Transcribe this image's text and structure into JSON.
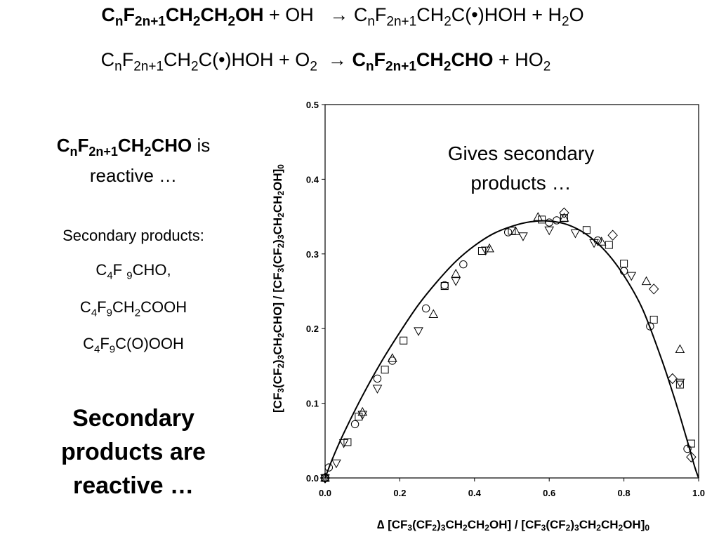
{
  "equations": {
    "eq1": {
      "reactant_bold": [
        "C",
        "n",
        "F",
        "2n+1",
        "CH",
        "2",
        "CH",
        "2",
        "OH"
      ],
      "plus_oh": " + OH",
      "arrow": "→",
      "product": [
        "C",
        "n",
        "F",
        "2n+1",
        "CH",
        "2",
        "C(•)HOH + H",
        "2",
        "O"
      ]
    },
    "eq2": {
      "reactant": [
        "C",
        "n",
        "F",
        "2n+1",
        "CH",
        "2",
        "C(•)HOH + O",
        "2"
      ],
      "arrow": "→",
      "product_bold": [
        "C",
        "n",
        "F",
        "2n+1",
        "CH",
        "2",
        "CHO"
      ],
      "plus_ho2": [
        "+ HO",
        "2"
      ]
    }
  },
  "left_panel": {
    "reactive_title": {
      "formula": [
        "C",
        "n",
        "F",
        "2n+1",
        "CH",
        "2",
        "CHO"
      ],
      "suffix": " is",
      "line2": "reactive …"
    },
    "secondary_heading": "Secondary products:",
    "secondary_items": [
      [
        "C",
        "4",
        "F ",
        "9",
        "CHO,"
      ],
      [
        "C",
        "4",
        "F",
        "9",
        "CH",
        "2",
        "COOH"
      ],
      [
        "C",
        "4",
        "F",
        "9",
        "C(O)OOH"
      ]
    ],
    "conclusion": [
      "Secondary",
      "products are",
      "reactive …"
    ]
  },
  "chart_data": {
    "type": "scatter",
    "annotation": [
      "Gives secondary",
      "products …"
    ],
    "xlabel_parts": [
      "∆ [CF",
      "3",
      "(CF",
      "2",
      ")",
      "3",
      "CH",
      "2",
      "CH",
      "2",
      "OH] / [CF",
      "3",
      "(CF",
      "2",
      ")",
      "3",
      "CH",
      "2",
      "CH",
      "2",
      "OH]",
      "0"
    ],
    "ylabel_parts": [
      "[CF",
      "3",
      "(CF",
      "2",
      ")",
      "3",
      "CH",
      "2",
      "CHO] / [CF",
      "3",
      "(CF",
      "2",
      ")",
      "3",
      "CH",
      "2",
      "CH",
      "2",
      "OH]",
      "0"
    ],
    "xlim": [
      0,
      1.0
    ],
    "ylim": [
      0,
      0.5
    ],
    "x_ticks": [
      0,
      0.2,
      0.4,
      0.6,
      0.8,
      1.0
    ],
    "x_tick_labels": [
      "0.0",
      "0.2",
      "0.4",
      "0.6",
      "0.8",
      "1.0"
    ],
    "y_ticks": [
      0,
      0.1,
      0.2,
      0.3,
      0.4,
      0.5
    ],
    "y_tick_labels": [
      "0.0",
      "0.1",
      "0.2",
      "0.3",
      "0.4",
      "0.5"
    ],
    "grid": false,
    "legend": "none",
    "fit_curve": {
      "x": [
        0,
        0.02,
        0.05,
        0.1,
        0.15,
        0.2,
        0.25,
        0.3,
        0.35,
        0.4,
        0.45,
        0.5,
        0.55,
        0.6,
        0.65,
        0.7,
        0.75,
        0.8,
        0.85,
        0.9,
        0.93,
        0.95,
        0.97,
        0.99,
        1.0
      ],
      "y": [
        0,
        0.026,
        0.06,
        0.11,
        0.155,
        0.195,
        0.232,
        0.263,
        0.29,
        0.311,
        0.327,
        0.337,
        0.343,
        0.344,
        0.339,
        0.326,
        0.304,
        0.271,
        0.226,
        0.16,
        0.115,
        0.083,
        0.049,
        0.014,
        0
      ]
    },
    "series": [
      {
        "marker": "circle",
        "x": [
          0,
          0.01,
          0.08,
          0.14,
          0.18,
          0.27,
          0.32,
          0.37,
          0.49,
          0.6,
          0.62,
          0.73,
          0.8,
          0.87,
          0.97
        ],
        "y": [
          0,
          0.014,
          0.072,
          0.133,
          0.157,
          0.227,
          0.258,
          0.286,
          0.329,
          0.342,
          0.345,
          0.318,
          0.277,
          0.203,
          0.039
        ]
      },
      {
        "marker": "square",
        "x": [
          0,
          0.06,
          0.09,
          0.16,
          0.21,
          0.32,
          0.42,
          0.5,
          0.58,
          0.64,
          0.7,
          0.76,
          0.8,
          0.88,
          0.95,
          0.98
        ],
        "y": [
          0,
          0.048,
          0.082,
          0.145,
          0.184,
          0.257,
          0.304,
          0.331,
          0.346,
          0.348,
          0.332,
          0.312,
          0.287,
          0.212,
          0.125,
          0.046
        ]
      },
      {
        "marker": "triangle-up",
        "x": [
          0,
          0.1,
          0.18,
          0.29,
          0.35,
          0.44,
          0.51,
          0.57,
          0.64,
          0.74,
          0.86,
          0.95
        ],
        "y": [
          0,
          0.088,
          0.16,
          0.219,
          0.273,
          0.307,
          0.33,
          0.349,
          0.348,
          0.316,
          0.263,
          0.172
        ]
      },
      {
        "marker": "triangle-down",
        "x": [
          0,
          0.03,
          0.05,
          0.1,
          0.14,
          0.25,
          0.35,
          0.43,
          0.53,
          0.6,
          0.67,
          0.72,
          0.82,
          0.95
        ],
        "y": [
          0,
          0.02,
          0.047,
          0.085,
          0.12,
          0.197,
          0.264,
          0.305,
          0.324,
          0.332,
          0.328,
          0.315,
          0.271,
          0.128
        ]
      },
      {
        "marker": "diamond",
        "x": [
          0,
          0.64,
          0.77,
          0.88,
          0.93,
          0.98
        ],
        "y": [
          0,
          0.355,
          0.325,
          0.253,
          0.133,
          0.028
        ]
      }
    ]
  }
}
